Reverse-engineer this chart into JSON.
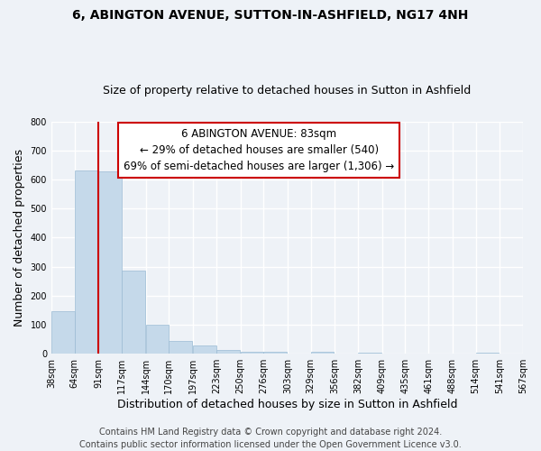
{
  "title": "6, ABINGTON AVENUE, SUTTON-IN-ASHFIELD, NG17 4NH",
  "subtitle": "Size of property relative to detached houses in Sutton in Ashfield",
  "xlabel": "Distribution of detached houses by size in Sutton in Ashfield",
  "ylabel": "Number of detached properties",
  "bar_color": "#c5d9ea",
  "bar_edge_color": "#9bbbd4",
  "bin_edges": [
    38,
    64,
    91,
    117,
    144,
    170,
    197,
    223,
    250,
    276,
    303,
    329,
    356,
    382,
    409,
    435,
    461,
    488,
    514,
    541,
    567
  ],
  "bar_heights": [
    148,
    632,
    628,
    287,
    100,
    45,
    30,
    12,
    8,
    8,
    0,
    6,
    0,
    5,
    0,
    0,
    0,
    0,
    5,
    0
  ],
  "tick_labels": [
    "38sqm",
    "64sqm",
    "91sqm",
    "117sqm",
    "144sqm",
    "170sqm",
    "197sqm",
    "223sqm",
    "250sqm",
    "276sqm",
    "303sqm",
    "329sqm",
    "356sqm",
    "382sqm",
    "409sqm",
    "435sqm",
    "461sqm",
    "488sqm",
    "514sqm",
    "541sqm",
    "567sqm"
  ],
  "property_line_x": 91,
  "property_line_color": "#cc0000",
  "ylim": [
    0,
    800
  ],
  "yticks": [
    0,
    100,
    200,
    300,
    400,
    500,
    600,
    700,
    800
  ],
  "annotation_title": "6 ABINGTON AVENUE: 83sqm",
  "annotation_line1": "← 29% of detached houses are smaller (540)",
  "annotation_line2": "69% of semi-detached houses are larger (1,306) →",
  "annotation_box_color": "#ffffff",
  "annotation_box_edge_color": "#cc0000",
  "footer_line1": "Contains HM Land Registry data © Crown copyright and database right 2024.",
  "footer_line2": "Contains public sector information licensed under the Open Government Licence v3.0.",
  "background_color": "#eef2f7",
  "plot_background_color": "#eef2f7",
  "grid_color": "#ffffff",
  "title_fontsize": 10,
  "subtitle_fontsize": 9,
  "axis_label_fontsize": 9,
  "tick_fontsize": 7,
  "footer_fontsize": 7,
  "annotation_fontsize": 8.5
}
